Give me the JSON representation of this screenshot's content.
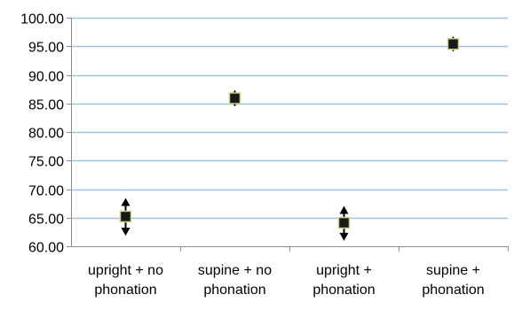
{
  "chart_data": {
    "type": "scatter",
    "title": "",
    "xlabel": "",
    "ylabel": "",
    "categories": [
      [
        "upright + no",
        "phonation"
      ],
      [
        "supine + no",
        "phonation"
      ],
      [
        "upright +",
        "phonation"
      ],
      [
        "supine +",
        "phonation"
      ]
    ],
    "values": [
      65.2,
      85.9,
      64.1,
      95.4
    ],
    "error_low": [
      62.0,
      84.6,
      61.1,
      94.2
    ],
    "error_high": [
      68.3,
      87.2,
      66.9,
      96.6
    ],
    "ylim": [
      60,
      100
    ],
    "yticks": [
      "60.00",
      "65.00",
      "70.00",
      "75.00",
      "80.00",
      "85.00",
      "90.00",
      "95.00",
      "100.00"
    ],
    "grid": true,
    "legend": "none",
    "colors": {
      "gridline": "#a6c0da",
      "axis": "#8c8c8c",
      "marker_fill": "#1a1a1a",
      "marker_edge": "#c8d28c",
      "errorbar": "#000000"
    }
  }
}
